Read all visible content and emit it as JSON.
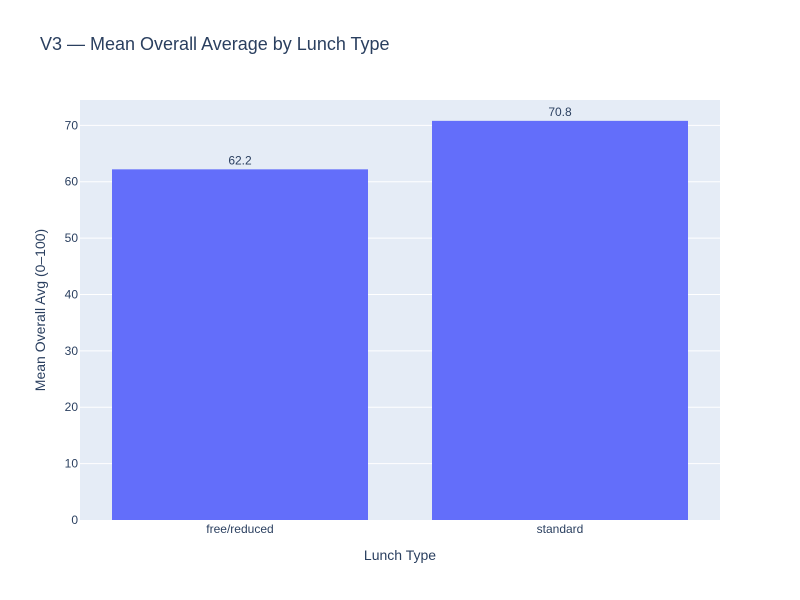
{
  "chart_data": {
    "type": "bar",
    "title": "V3 — Mean Overall Average by Lunch Type",
    "xlabel": "Lunch Type",
    "ylabel": "Mean Overall Avg (0–100)",
    "categories": [
      "free/reduced",
      "standard"
    ],
    "values": [
      62.2,
      70.8
    ],
    "data_labels": [
      "62.2",
      "70.8"
    ],
    "ylim": [
      0,
      74.5
    ],
    "yticks": [
      0,
      10,
      20,
      30,
      40,
      50,
      60,
      70
    ],
    "ytick_labels": [
      "0",
      "10",
      "20",
      "30",
      "40",
      "50",
      "60",
      "70"
    ],
    "grid": true,
    "legend": "none",
    "colors": {
      "bar": "#636efa",
      "plot_bg": "#e5ecf6",
      "grid": "#ffffff",
      "text": "#2a3f5f"
    }
  }
}
